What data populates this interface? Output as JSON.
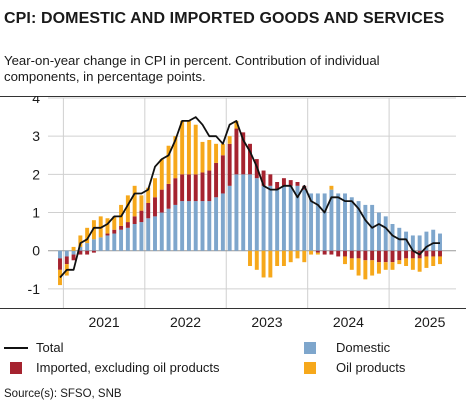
{
  "title": "CPI: DOMESTIC AND IMPORTED GOODS AND SERVICES",
  "subtitle": "Year-on-year change in CPI in percent. Contribution of individual components, in percentage points.",
  "source": "Source(s): SFSO, SNB",
  "colors": {
    "total": "#111111",
    "imported_excl_oil": "#a5232f",
    "domestic": "#7ea6cc",
    "oil": "#f6a81b",
    "grid": "#d0d0d0",
    "axis": "#333333"
  },
  "chart_data": {
    "type": "bar",
    "stacked": true,
    "title": "CPI: DOMESTIC AND IMPORTED GOODS AND SERVICES",
    "ylim": [
      -1.5,
      4.0
    ],
    "y_ticks": [
      -1,
      0,
      1,
      2,
      3,
      4
    ],
    "x_tick_labels": [
      "2021",
      "2022",
      "2023",
      "2024",
      "2025"
    ],
    "x": [
      "2020-12",
      "2021-01",
      "2021-02",
      "2021-03",
      "2021-04",
      "2021-05",
      "2021-06",
      "2021-07",
      "2021-08",
      "2021-09",
      "2021-10",
      "2021-11",
      "2021-12",
      "2022-01",
      "2022-02",
      "2022-03",
      "2022-04",
      "2022-05",
      "2022-06",
      "2022-07",
      "2022-08",
      "2022-09",
      "2022-10",
      "2022-11",
      "2022-12",
      "2023-01",
      "2023-02",
      "2023-03",
      "2023-04",
      "2023-05",
      "2023-06",
      "2023-07",
      "2023-08",
      "2023-09",
      "2023-10",
      "2023-11",
      "2023-12",
      "2024-01",
      "2024-02",
      "2024-03",
      "2024-04",
      "2024-05",
      "2024-06",
      "2024-07",
      "2024-08",
      "2024-09",
      "2024-10",
      "2024-11",
      "2024-12",
      "2025-01",
      "2025-02",
      "2025-03",
      "2025-04",
      "2025-05",
      "2025-06",
      "2025-07",
      "2025-08"
    ],
    "series": [
      {
        "name": "Domestic",
        "values": [
          -0.2,
          -0.15,
          -0.1,
          0.1,
          0.2,
          0.3,
          0.35,
          0.4,
          0.45,
          0.55,
          0.6,
          0.7,
          0.75,
          0.85,
          0.9,
          1.0,
          1.1,
          1.2,
          1.3,
          1.3,
          1.3,
          1.3,
          1.3,
          1.4,
          1.5,
          1.7,
          2.0,
          2.0,
          2.0,
          1.9,
          1.7,
          1.7,
          1.6,
          1.7,
          1.7,
          1.7,
          1.6,
          1.5,
          1.5,
          1.5,
          1.6,
          1.5,
          1.5,
          1.4,
          1.3,
          1.2,
          1.2,
          1.0,
          0.9,
          0.7,
          0.6,
          0.5,
          0.4,
          0.4,
          0.5,
          0.55,
          0.45
        ]
      },
      {
        "name": "Imported, excluding oil products",
        "values": [
          -0.3,
          -0.2,
          -0.15,
          -0.1,
          -0.1,
          -0.05,
          0.0,
          0.05,
          0.1,
          0.1,
          0.15,
          0.2,
          0.3,
          0.4,
          0.5,
          0.6,
          0.65,
          0.7,
          0.7,
          0.7,
          0.7,
          0.75,
          0.8,
          0.9,
          1.0,
          1.1,
          1.2,
          1.1,
          0.8,
          0.5,
          0.4,
          0.3,
          0.2,
          0.2,
          0.15,
          0.1,
          0.1,
          0.0,
          -0.05,
          -0.1,
          -0.1,
          -0.15,
          -0.15,
          -0.2,
          -0.2,
          -0.25,
          -0.25,
          -0.3,
          -0.3,
          -0.3,
          -0.25,
          -0.2,
          -0.2,
          -0.2,
          -0.15,
          -0.15,
          -0.15
        ]
      },
      {
        "name": "Oil products",
        "values": [
          -0.4,
          -0.3,
          0.1,
          0.3,
          0.4,
          0.5,
          0.55,
          0.4,
          0.35,
          0.55,
          0.7,
          0.8,
          0.4,
          0.4,
          0.5,
          0.8,
          1.0,
          1.1,
          1.4,
          1.4,
          1.3,
          0.8,
          0.8,
          0.5,
          0.3,
          0.2,
          0.2,
          0.0,
          -0.4,
          -0.5,
          -0.7,
          -0.7,
          -0.4,
          -0.4,
          -0.3,
          -0.2,
          -0.3,
          -0.1,
          -0.05,
          0.0,
          0.1,
          0.0,
          -0.2,
          -0.3,
          -0.45,
          -0.5,
          -0.4,
          -0.3,
          -0.2,
          -0.2,
          -0.1,
          -0.2,
          -0.3,
          -0.35,
          -0.3,
          -0.25,
          -0.2
        ]
      },
      {
        "name": "Total",
        "type": "line",
        "values": [
          -0.7,
          -0.5,
          -0.5,
          0.2,
          0.3,
          0.6,
          0.6,
          0.7,
          0.9,
          0.9,
          1.2,
          1.5,
          1.5,
          1.6,
          2.2,
          2.4,
          2.5,
          2.9,
          3.4,
          3.4,
          3.5,
          3.3,
          3.0,
          3.0,
          2.8,
          3.3,
          3.4,
          2.9,
          2.6,
          2.2,
          1.7,
          1.6,
          1.6,
          1.7,
          1.7,
          1.4,
          1.7,
          1.3,
          1.2,
          1.0,
          1.4,
          1.4,
          1.3,
          1.3,
          1.1,
          0.8,
          0.6,
          0.7,
          0.6,
          0.4,
          0.3,
          0.3,
          0.0,
          -0.1,
          0.1,
          0.2,
          0.2
        ]
      }
    ]
  },
  "legend": [
    {
      "label": "Total",
      "kind": "line",
      "color": "#111111"
    },
    {
      "label": "Domestic",
      "kind": "box",
      "color": "#7ea6cc"
    },
    {
      "label": "Imported, excluding oil products",
      "kind": "box",
      "color": "#a5232f"
    },
    {
      "label": "Oil products",
      "kind": "box",
      "color": "#f6a81b"
    }
  ]
}
